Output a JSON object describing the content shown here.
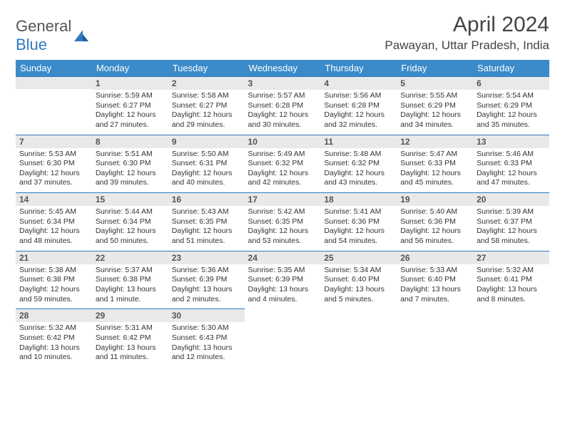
{
  "colors": {
    "header_bg": "#3b8bca",
    "header_text": "#ffffff",
    "daynum_bg": "#e9e9e9",
    "daynum_border": "#2f7abf",
    "body_text": "#333333",
    "logo_gray": "#555555",
    "logo_blue": "#2f7abf"
  },
  "logo": {
    "text_gray": "General",
    "text_blue": "Blue"
  },
  "title": "April 2024",
  "location": "Pawayan, Uttar Pradesh, India",
  "weekdays": [
    "Sunday",
    "Monday",
    "Tuesday",
    "Wednesday",
    "Thursday",
    "Friday",
    "Saturday"
  ],
  "weeks": [
    [
      null,
      {
        "n": "1",
        "sr": "Sunrise: 5:59 AM",
        "ss": "Sunset: 6:27 PM",
        "dl": "Daylight: 12 hours and 27 minutes."
      },
      {
        "n": "2",
        "sr": "Sunrise: 5:58 AM",
        "ss": "Sunset: 6:27 PM",
        "dl": "Daylight: 12 hours and 29 minutes."
      },
      {
        "n": "3",
        "sr": "Sunrise: 5:57 AM",
        "ss": "Sunset: 6:28 PM",
        "dl": "Daylight: 12 hours and 30 minutes."
      },
      {
        "n": "4",
        "sr": "Sunrise: 5:56 AM",
        "ss": "Sunset: 6:28 PM",
        "dl": "Daylight: 12 hours and 32 minutes."
      },
      {
        "n": "5",
        "sr": "Sunrise: 5:55 AM",
        "ss": "Sunset: 6:29 PM",
        "dl": "Daylight: 12 hours and 34 minutes."
      },
      {
        "n": "6",
        "sr": "Sunrise: 5:54 AM",
        "ss": "Sunset: 6:29 PM",
        "dl": "Daylight: 12 hours and 35 minutes."
      }
    ],
    [
      {
        "n": "7",
        "sr": "Sunrise: 5:53 AM",
        "ss": "Sunset: 6:30 PM",
        "dl": "Daylight: 12 hours and 37 minutes."
      },
      {
        "n": "8",
        "sr": "Sunrise: 5:51 AM",
        "ss": "Sunset: 6:30 PM",
        "dl": "Daylight: 12 hours and 39 minutes."
      },
      {
        "n": "9",
        "sr": "Sunrise: 5:50 AM",
        "ss": "Sunset: 6:31 PM",
        "dl": "Daylight: 12 hours and 40 minutes."
      },
      {
        "n": "10",
        "sr": "Sunrise: 5:49 AM",
        "ss": "Sunset: 6:32 PM",
        "dl": "Daylight: 12 hours and 42 minutes."
      },
      {
        "n": "11",
        "sr": "Sunrise: 5:48 AM",
        "ss": "Sunset: 6:32 PM",
        "dl": "Daylight: 12 hours and 43 minutes."
      },
      {
        "n": "12",
        "sr": "Sunrise: 5:47 AM",
        "ss": "Sunset: 6:33 PM",
        "dl": "Daylight: 12 hours and 45 minutes."
      },
      {
        "n": "13",
        "sr": "Sunrise: 5:46 AM",
        "ss": "Sunset: 6:33 PM",
        "dl": "Daylight: 12 hours and 47 minutes."
      }
    ],
    [
      {
        "n": "14",
        "sr": "Sunrise: 5:45 AM",
        "ss": "Sunset: 6:34 PM",
        "dl": "Daylight: 12 hours and 48 minutes."
      },
      {
        "n": "15",
        "sr": "Sunrise: 5:44 AM",
        "ss": "Sunset: 6:34 PM",
        "dl": "Daylight: 12 hours and 50 minutes."
      },
      {
        "n": "16",
        "sr": "Sunrise: 5:43 AM",
        "ss": "Sunset: 6:35 PM",
        "dl": "Daylight: 12 hours and 51 minutes."
      },
      {
        "n": "17",
        "sr": "Sunrise: 5:42 AM",
        "ss": "Sunset: 6:35 PM",
        "dl": "Daylight: 12 hours and 53 minutes."
      },
      {
        "n": "18",
        "sr": "Sunrise: 5:41 AM",
        "ss": "Sunset: 6:36 PM",
        "dl": "Daylight: 12 hours and 54 minutes."
      },
      {
        "n": "19",
        "sr": "Sunrise: 5:40 AM",
        "ss": "Sunset: 6:36 PM",
        "dl": "Daylight: 12 hours and 56 minutes."
      },
      {
        "n": "20",
        "sr": "Sunrise: 5:39 AM",
        "ss": "Sunset: 6:37 PM",
        "dl": "Daylight: 12 hours and 58 minutes."
      }
    ],
    [
      {
        "n": "21",
        "sr": "Sunrise: 5:38 AM",
        "ss": "Sunset: 6:38 PM",
        "dl": "Daylight: 12 hours and 59 minutes."
      },
      {
        "n": "22",
        "sr": "Sunrise: 5:37 AM",
        "ss": "Sunset: 6:38 PM",
        "dl": "Daylight: 13 hours and 1 minute."
      },
      {
        "n": "23",
        "sr": "Sunrise: 5:36 AM",
        "ss": "Sunset: 6:39 PM",
        "dl": "Daylight: 13 hours and 2 minutes."
      },
      {
        "n": "24",
        "sr": "Sunrise: 5:35 AM",
        "ss": "Sunset: 6:39 PM",
        "dl": "Daylight: 13 hours and 4 minutes."
      },
      {
        "n": "25",
        "sr": "Sunrise: 5:34 AM",
        "ss": "Sunset: 6:40 PM",
        "dl": "Daylight: 13 hours and 5 minutes."
      },
      {
        "n": "26",
        "sr": "Sunrise: 5:33 AM",
        "ss": "Sunset: 6:40 PM",
        "dl": "Daylight: 13 hours and 7 minutes."
      },
      {
        "n": "27",
        "sr": "Sunrise: 5:32 AM",
        "ss": "Sunset: 6:41 PM",
        "dl": "Daylight: 13 hours and 8 minutes."
      }
    ],
    [
      {
        "n": "28",
        "sr": "Sunrise: 5:32 AM",
        "ss": "Sunset: 6:42 PM",
        "dl": "Daylight: 13 hours and 10 minutes."
      },
      {
        "n": "29",
        "sr": "Sunrise: 5:31 AM",
        "ss": "Sunset: 6:42 PM",
        "dl": "Daylight: 13 hours and 11 minutes."
      },
      {
        "n": "30",
        "sr": "Sunrise: 5:30 AM",
        "ss": "Sunset: 6:43 PM",
        "dl": "Daylight: 13 hours and 12 minutes."
      },
      null,
      null,
      null,
      null
    ]
  ]
}
